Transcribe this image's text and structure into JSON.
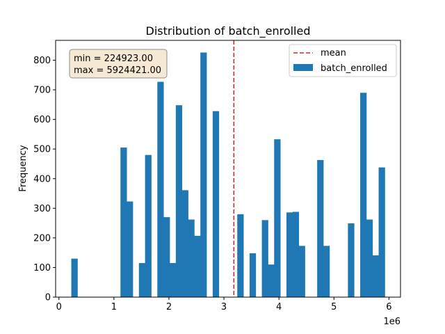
{
  "chart_data": {
    "type": "bar",
    "title": "Distribution of batch_enrolled",
    "xlabel": "",
    "ylabel": "Frequency",
    "x_offset_label": "1e6",
    "xlim": [
      -0.06,
      6.21
    ],
    "ylim": [
      0,
      867
    ],
    "x_ticks": [
      0,
      1,
      2,
      3,
      4,
      5,
      6
    ],
    "x_tick_labels": [
      "0",
      "1",
      "2",
      "3",
      "4",
      "5",
      "6"
    ],
    "y_ticks": [
      0,
      100,
      200,
      300,
      400,
      500,
      600,
      700,
      800
    ],
    "y_tick_labels": [
      "0",
      "100",
      "200",
      "300",
      "400",
      "500",
      "600",
      "700",
      "800"
    ],
    "bin_start": 0.224923,
    "bin_end": 5.924421,
    "counts": [
      130,
      0,
      0,
      0,
      0,
      0,
      0,
      0,
      505,
      323,
      0,
      115,
      480,
      0,
      727,
      270,
      115,
      648,
      361,
      262,
      207,
      826,
      0,
      628,
      0,
      0,
      0,
      280,
      0,
      148,
      0,
      260,
      110,
      533,
      0,
      286,
      288,
      173,
      0,
      0,
      463,
      173,
      0,
      0,
      0,
      249,
      0,
      690,
      262,
      141,
      438
    ],
    "mean": 3.18,
    "bar_color": "#1f77b4",
    "mean_color": "#d62728",
    "legend": {
      "placement": "top-right",
      "entries": [
        {
          "label": "mean",
          "style": "dashed-line",
          "color": "#d62728"
        },
        {
          "label": "batch_enrolled",
          "style": "patch",
          "color": "#1f77b4"
        }
      ]
    },
    "annotation": {
      "placement": "top-left",
      "lines": [
        "min = 224923.00",
        "max = 5924421.00"
      ],
      "background": "#f5e9d3",
      "border": "#8c8c8c"
    },
    "grid": false
  }
}
